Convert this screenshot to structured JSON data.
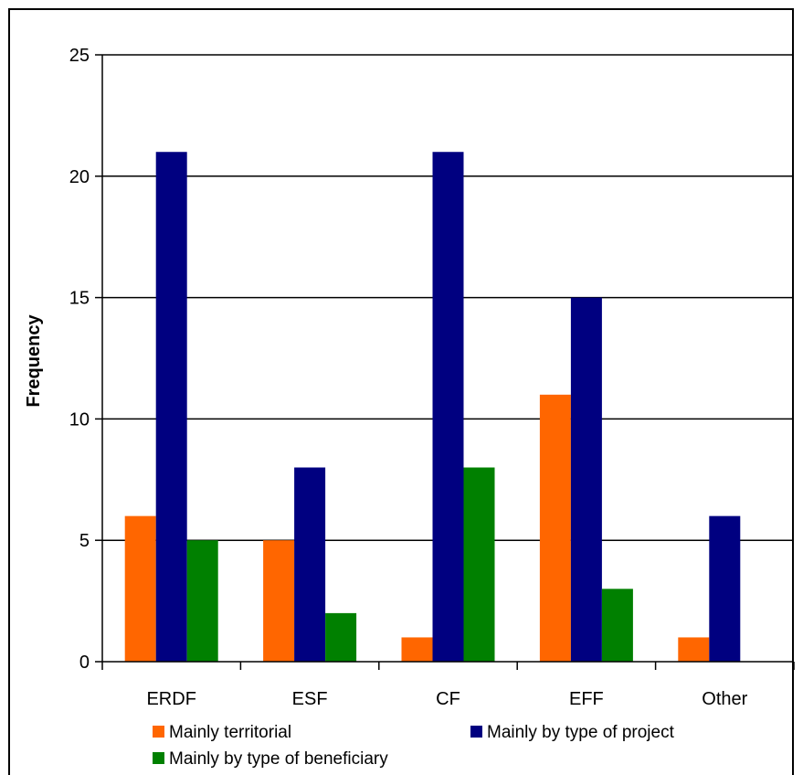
{
  "chart_data": {
    "type": "bar",
    "title": "",
    "xlabel": "",
    "ylabel": "Frequency",
    "ylim": [
      0,
      25
    ],
    "yticks": [
      0,
      5,
      10,
      15,
      20,
      25
    ],
    "grid": true,
    "legend_position": "bottom",
    "categories": [
      "ERDF",
      "ESF",
      "CF",
      "EFF",
      "Other"
    ],
    "series": [
      {
        "name": "Mainly territorial",
        "color": "#ff6600",
        "values": [
          6,
          5,
          1,
          11,
          1
        ]
      },
      {
        "name": "Mainly by type of project",
        "color": "#000080",
        "values": [
          21,
          8,
          21,
          15,
          6
        ]
      },
      {
        "name": "Mainly by type of beneficiary",
        "color": "#008000",
        "values": [
          5,
          2,
          8,
          3,
          0
        ]
      }
    ]
  }
}
